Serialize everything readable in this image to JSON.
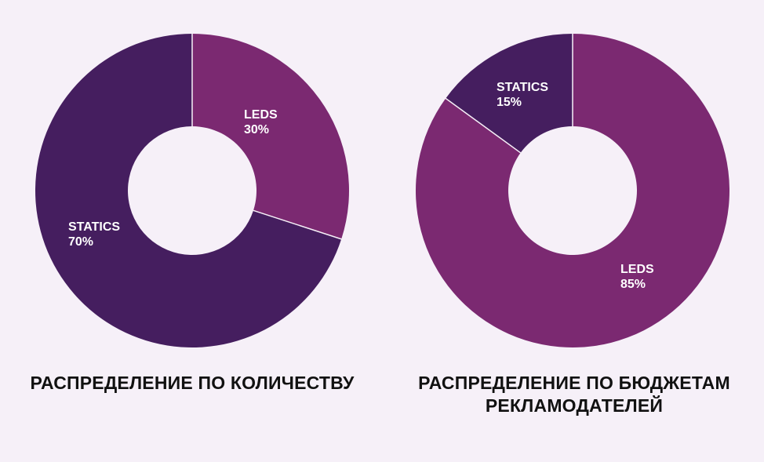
{
  "colors": {
    "background": "#f6f0f8",
    "leds": "#7b2971",
    "statics": "#451e5f",
    "separator": "#f6f0f8",
    "label": "#ffffff",
    "title": "#111111"
  },
  "chart_data": [
    {
      "type": "pie",
      "variant": "donut",
      "title": "РАСПРЕДЕЛЕНИЕ ПО КОЛИЧЕСТВУ",
      "slices": [
        {
          "name": "LEDS",
          "value": 30,
          "label": "30%",
          "color": "#7b2971"
        },
        {
          "name": "STATICS",
          "value": 70,
          "label": "70%",
          "color": "#451e5f"
        }
      ]
    },
    {
      "type": "pie",
      "variant": "donut",
      "title_lines": [
        "РАСПРЕДЕЛЕНИЕ ПО БЮДЖЕТАМ",
        "РЕКЛАМОДАТЕЛЕЙ"
      ],
      "slices": [
        {
          "name": "LEDS",
          "value": 85,
          "label": "85%",
          "color": "#7b2971"
        },
        {
          "name": "STATICS",
          "value": 15,
          "label": "15%",
          "color": "#451e5f"
        }
      ]
    }
  ]
}
